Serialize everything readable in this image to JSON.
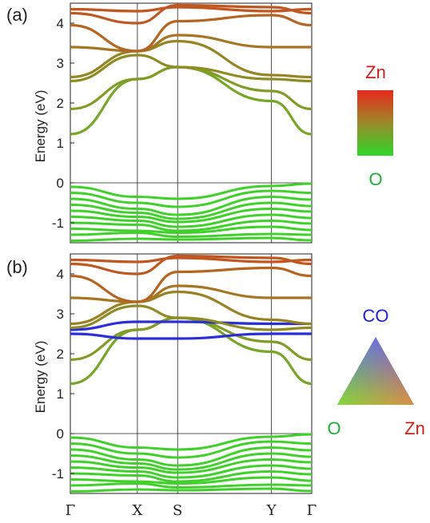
{
  "chart_data": [
    {
      "panel_label": "(a)",
      "type": "line",
      "ylabel": "Energy (eV)",
      "ylim": [
        -1.5,
        4.5
      ],
      "y_ticks": [
        "-1",
        "0",
        "1",
        "2",
        "3",
        "4"
      ],
      "x_ticks": [
        "Γ",
        "X",
        "S",
        "Y",
        "Γ"
      ],
      "x_tick_positions": [
        0,
        1,
        1.6,
        3.0,
        3.6
      ],
      "fermi_level": 0,
      "color_legend": {
        "type": "colorbar",
        "top_label": "Zn",
        "bottom_label": "O",
        "top_color": "#e8281a",
        "bottom_color": "#2fd62a"
      },
      "bands": [
        {
          "y": [
            -1.45,
            -1.4,
            -1.42,
            -1.38,
            -1.44
          ]
        },
        {
          "y": [
            -1.3,
            -1.25,
            -1.35,
            -1.28,
            -1.3
          ]
        },
        {
          "y": [
            -1.15,
            -1.2,
            -1.25,
            -1.1,
            -1.18
          ]
        },
        {
          "y": [
            -1.0,
            -1.05,
            -1.2,
            -0.95,
            -1.02
          ]
        },
        {
          "y": [
            -0.85,
            -0.95,
            -1.1,
            -0.8,
            -0.88
          ]
        },
        {
          "y": [
            -0.7,
            -0.85,
            -0.98,
            -0.65,
            -0.72
          ]
        },
        {
          "y": [
            -0.55,
            -0.75,
            -0.9,
            -0.5,
            -0.58
          ]
        },
        {
          "y": [
            -0.4,
            -0.65,
            -0.8,
            -0.35,
            -0.42
          ]
        },
        {
          "y": [
            -0.25,
            -0.5,
            -0.6,
            -0.2,
            -0.25
          ]
        },
        {
          "y": [
            -0.1,
            -0.35,
            -0.4,
            -0.08,
            -0.02
          ]
        },
        {
          "y": [
            1.22,
            2.6,
            2.9,
            2.05,
            1.22
          ]
        },
        {
          "y": [
            1.85,
            2.6,
            2.9,
            2.3,
            1.85
          ]
        },
        {
          "y": [
            2.55,
            3.2,
            2.9,
            2.6,
            2.55
          ]
        },
        {
          "y": [
            2.65,
            3.3,
            3.55,
            2.7,
            2.65
          ]
        },
        {
          "y": [
            3.4,
            3.3,
            3.7,
            3.4,
            3.4
          ]
        },
        {
          "y": [
            3.95,
            3.3,
            4.05,
            4.2,
            3.95
          ]
        },
        {
          "y": [
            4.25,
            4.0,
            4.45,
            4.4,
            4.25
          ]
        },
        {
          "y": [
            4.35,
            4.3,
            4.4,
            4.3,
            4.35
          ]
        }
      ]
    },
    {
      "panel_label": "(b)",
      "type": "line",
      "ylabel": "Energy (eV)",
      "ylim": [
        -1.5,
        4.5
      ],
      "y_ticks": [
        "-1",
        "0",
        "1",
        "2",
        "3",
        "4"
      ],
      "x_ticks": [
        "Γ",
        "X",
        "S",
        "Y",
        "Γ"
      ],
      "x_tick_positions": [
        0,
        1,
        1.6,
        3.0,
        3.6
      ],
      "fermi_level": 0,
      "color_legend": {
        "type": "ternary",
        "top_label": "CO",
        "left_label": "O",
        "right_label": "Zn",
        "top_color": "#1e22d6",
        "left_color": "#2fd62a",
        "right_color": "#d61e1e"
      },
      "bands": [
        {
          "y": [
            -1.45,
            -1.4,
            -1.42,
            -1.38,
            -1.44
          ]
        },
        {
          "y": [
            -1.3,
            -1.25,
            -1.35,
            -1.28,
            -1.3
          ]
        },
        {
          "y": [
            -1.15,
            -1.2,
            -1.25,
            -1.1,
            -1.18
          ]
        },
        {
          "y": [
            -1.0,
            -1.05,
            -1.2,
            -0.95,
            -1.02
          ]
        },
        {
          "y": [
            -0.85,
            -0.95,
            -1.1,
            -0.8,
            -0.88
          ]
        },
        {
          "y": [
            -0.7,
            -0.85,
            -0.98,
            -0.65,
            -0.72
          ]
        },
        {
          "y": [
            -0.55,
            -0.75,
            -0.9,
            -0.5,
            -0.58
          ]
        },
        {
          "y": [
            -0.4,
            -0.65,
            -0.8,
            -0.35,
            -0.42
          ]
        },
        {
          "y": [
            -0.25,
            -0.5,
            -0.6,
            -0.2,
            -0.25
          ]
        },
        {
          "y": [
            -0.1,
            -0.35,
            -0.4,
            -0.08,
            -0.02
          ]
        },
        {
          "y": [
            1.25,
            2.6,
            2.9,
            2.05,
            1.25
          ]
        },
        {
          "y": [
            1.85,
            2.6,
            2.9,
            2.3,
            1.85
          ]
        },
        {
          "y": [
            2.6,
            2.8,
            2.8,
            2.75,
            2.75
          ]
        },
        {
          "y": [
            2.5,
            2.38,
            2.38,
            2.5,
            2.5
          ]
        },
        {
          "y": [
            2.65,
            3.2,
            2.9,
            2.6,
            2.65
          ]
        },
        {
          "y": [
            2.75,
            3.3,
            3.55,
            2.85,
            2.75
          ]
        },
        {
          "y": [
            3.4,
            3.3,
            3.7,
            3.4,
            3.4
          ]
        },
        {
          "y": [
            3.95,
            3.3,
            4.05,
            4.15,
            3.95
          ]
        },
        {
          "y": [
            4.25,
            4.0,
            4.45,
            4.4,
            4.25
          ]
        },
        {
          "y": [
            4.35,
            4.3,
            4.4,
            4.3,
            4.35
          ]
        }
      ]
    }
  ]
}
